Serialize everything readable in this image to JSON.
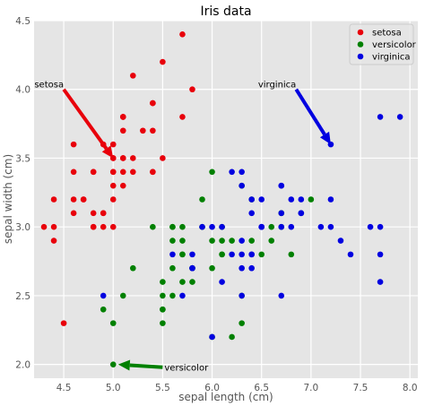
{
  "chart_data": {
    "type": "scatter",
    "title": "Iris data",
    "xlabel": "sepal length (cm)",
    "ylabel": "sepal width (cm)",
    "xlim": [
      4.2,
      8.08
    ],
    "ylim": [
      1.9,
      4.5
    ],
    "xticks": [
      4.5,
      5.0,
      5.5,
      6.0,
      6.5,
      7.0,
      7.5,
      8.0
    ],
    "yticks": [
      2.0,
      2.5,
      3.0,
      3.5,
      4.0,
      4.5
    ],
    "xtick_labels": [
      "4.5",
      "5.0",
      "5.5",
      "6.0",
      "6.5",
      "7.0",
      "7.5",
      "8.0"
    ],
    "ytick_labels": [
      "2.0",
      "2.5",
      "3.0",
      "3.5",
      "4.0",
      "4.5"
    ],
    "grid": true,
    "legend_position": "top-right",
    "series": [
      {
        "name": "setosa",
        "color": "#e8000b",
        "points": [
          [
            5.1,
            3.5
          ],
          [
            4.9,
            3.0
          ],
          [
            4.7,
            3.2
          ],
          [
            4.6,
            3.1
          ],
          [
            5.0,
            3.6
          ],
          [
            5.4,
            3.9
          ],
          [
            4.6,
            3.4
          ],
          [
            5.0,
            3.4
          ],
          [
            4.4,
            2.9
          ],
          [
            4.9,
            3.1
          ],
          [
            5.4,
            3.7
          ],
          [
            4.8,
            3.4
          ],
          [
            4.8,
            3.0
          ],
          [
            4.3,
            3.0
          ],
          [
            5.8,
            4.0
          ],
          [
            5.7,
            4.4
          ],
          [
            5.4,
            3.9
          ],
          [
            5.1,
            3.5
          ],
          [
            5.7,
            3.8
          ],
          [
            5.1,
            3.8
          ],
          [
            5.4,
            3.4
          ],
          [
            5.1,
            3.7
          ],
          [
            4.6,
            3.6
          ],
          [
            5.1,
            3.3
          ],
          [
            4.8,
            3.4
          ],
          [
            5.0,
            3.0
          ],
          [
            5.0,
            3.4
          ],
          [
            5.2,
            3.5
          ],
          [
            5.2,
            3.4
          ],
          [
            4.7,
            3.2
          ],
          [
            4.8,
            3.1
          ],
          [
            5.4,
            3.4
          ],
          [
            5.2,
            4.1
          ],
          [
            5.5,
            4.2
          ],
          [
            4.9,
            3.1
          ],
          [
            5.0,
            3.2
          ],
          [
            5.5,
            3.5
          ],
          [
            4.9,
            3.6
          ],
          [
            4.4,
            3.0
          ],
          [
            5.1,
            3.4
          ],
          [
            5.0,
            3.5
          ],
          [
            4.5,
            2.3
          ],
          [
            4.4,
            3.2
          ],
          [
            5.0,
            3.5
          ],
          [
            5.1,
            3.8
          ],
          [
            4.8,
            3.0
          ],
          [
            5.1,
            3.8
          ],
          [
            4.6,
            3.2
          ],
          [
            5.3,
            3.7
          ],
          [
            5.0,
            3.3
          ]
        ]
      },
      {
        "name": "versicolor",
        "color": "#008000",
        "points": [
          [
            7.0,
            3.2
          ],
          [
            6.4,
            3.2
          ],
          [
            6.9,
            3.1
          ],
          [
            5.5,
            2.3
          ],
          [
            6.5,
            2.8
          ],
          [
            5.7,
            2.8
          ],
          [
            6.3,
            3.3
          ],
          [
            4.9,
            2.4
          ],
          [
            6.6,
            2.9
          ],
          [
            5.2,
            2.7
          ],
          [
            5.0,
            2.0
          ],
          [
            5.9,
            3.0
          ],
          [
            6.0,
            2.2
          ],
          [
            6.1,
            2.9
          ],
          [
            5.6,
            2.9
          ],
          [
            6.7,
            3.1
          ],
          [
            5.6,
            3.0
          ],
          [
            5.8,
            2.7
          ],
          [
            6.2,
            2.2
          ],
          [
            5.6,
            2.5
          ],
          [
            5.9,
            3.2
          ],
          [
            6.1,
            2.8
          ],
          [
            6.3,
            2.5
          ],
          [
            6.1,
            2.8
          ],
          [
            6.4,
            2.9
          ],
          [
            6.6,
            3.0
          ],
          [
            6.8,
            2.8
          ],
          [
            6.7,
            3.0
          ],
          [
            6.0,
            2.9
          ],
          [
            5.7,
            2.6
          ],
          [
            5.5,
            2.4
          ],
          [
            5.5,
            2.4
          ],
          [
            5.8,
            2.7
          ],
          [
            6.0,
            2.7
          ],
          [
            5.4,
            3.0
          ],
          [
            6.0,
            3.4
          ],
          [
            6.7,
            3.1
          ],
          [
            6.3,
            2.3
          ],
          [
            5.6,
            3.0
          ],
          [
            5.5,
            2.5
          ],
          [
            5.5,
            2.6
          ],
          [
            6.1,
            3.0
          ],
          [
            5.8,
            2.6
          ],
          [
            5.0,
            2.3
          ],
          [
            5.6,
            2.7
          ],
          [
            5.7,
            3.0
          ],
          [
            5.7,
            2.9
          ],
          [
            6.2,
            2.9
          ],
          [
            5.1,
            2.5
          ],
          [
            5.7,
            2.8
          ]
        ]
      },
      {
        "name": "virginica",
        "color": "#0000e0",
        "points": [
          [
            6.3,
            3.3
          ],
          [
            5.8,
            2.7
          ],
          [
            7.1,
            3.0
          ],
          [
            6.3,
            2.9
          ],
          [
            6.5,
            3.0
          ],
          [
            7.6,
            3.0
          ],
          [
            4.9,
            2.5
          ],
          [
            7.3,
            2.9
          ],
          [
            6.7,
            2.5
          ],
          [
            7.2,
            3.6
          ],
          [
            6.5,
            3.2
          ],
          [
            6.4,
            2.7
          ],
          [
            6.8,
            3.0
          ],
          [
            5.7,
            2.5
          ],
          [
            5.8,
            2.8
          ],
          [
            6.4,
            3.2
          ],
          [
            6.5,
            3.0
          ],
          [
            7.7,
            3.8
          ],
          [
            7.7,
            2.6
          ],
          [
            6.0,
            2.2
          ],
          [
            6.9,
            3.2
          ],
          [
            5.6,
            2.8
          ],
          [
            7.7,
            2.8
          ],
          [
            6.3,
            2.7
          ],
          [
            6.7,
            3.3
          ],
          [
            7.2,
            3.2
          ],
          [
            6.2,
            2.8
          ],
          [
            6.1,
            3.0
          ],
          [
            6.4,
            2.8
          ],
          [
            7.2,
            3.0
          ],
          [
            7.4,
            2.8
          ],
          [
            7.9,
            3.8
          ],
          [
            6.4,
            2.8
          ],
          [
            6.3,
            2.8
          ],
          [
            6.1,
            2.6
          ],
          [
            7.7,
            3.0
          ],
          [
            6.3,
            3.4
          ],
          [
            6.4,
            3.1
          ],
          [
            6.0,
            3.0
          ],
          [
            6.9,
            3.1
          ],
          [
            6.7,
            3.1
          ],
          [
            6.9,
            3.1
          ],
          [
            5.8,
            2.7
          ],
          [
            6.8,
            3.2
          ],
          [
            6.7,
            3.3
          ],
          [
            6.7,
            3.0
          ],
          [
            6.3,
            2.5
          ],
          [
            6.5,
            3.0
          ],
          [
            6.2,
            3.4
          ],
          [
            5.9,
            3.0
          ]
        ]
      }
    ],
    "annotations": [
      {
        "text": "setosa",
        "xytext": [
          4.5,
          4.0
        ],
        "xy": [
          5.0,
          3.5
        ],
        "color": "#e8000b"
      },
      {
        "text": "virginica",
        "xytext": [
          6.85,
          4.0
        ],
        "xy": [
          7.2,
          3.6
        ],
        "color": "#0000e0"
      },
      {
        "text": "versicolor",
        "xytext": [
          5.5,
          1.98
        ],
        "xy": [
          5.05,
          2.0
        ],
        "color": "#008000"
      }
    ]
  }
}
